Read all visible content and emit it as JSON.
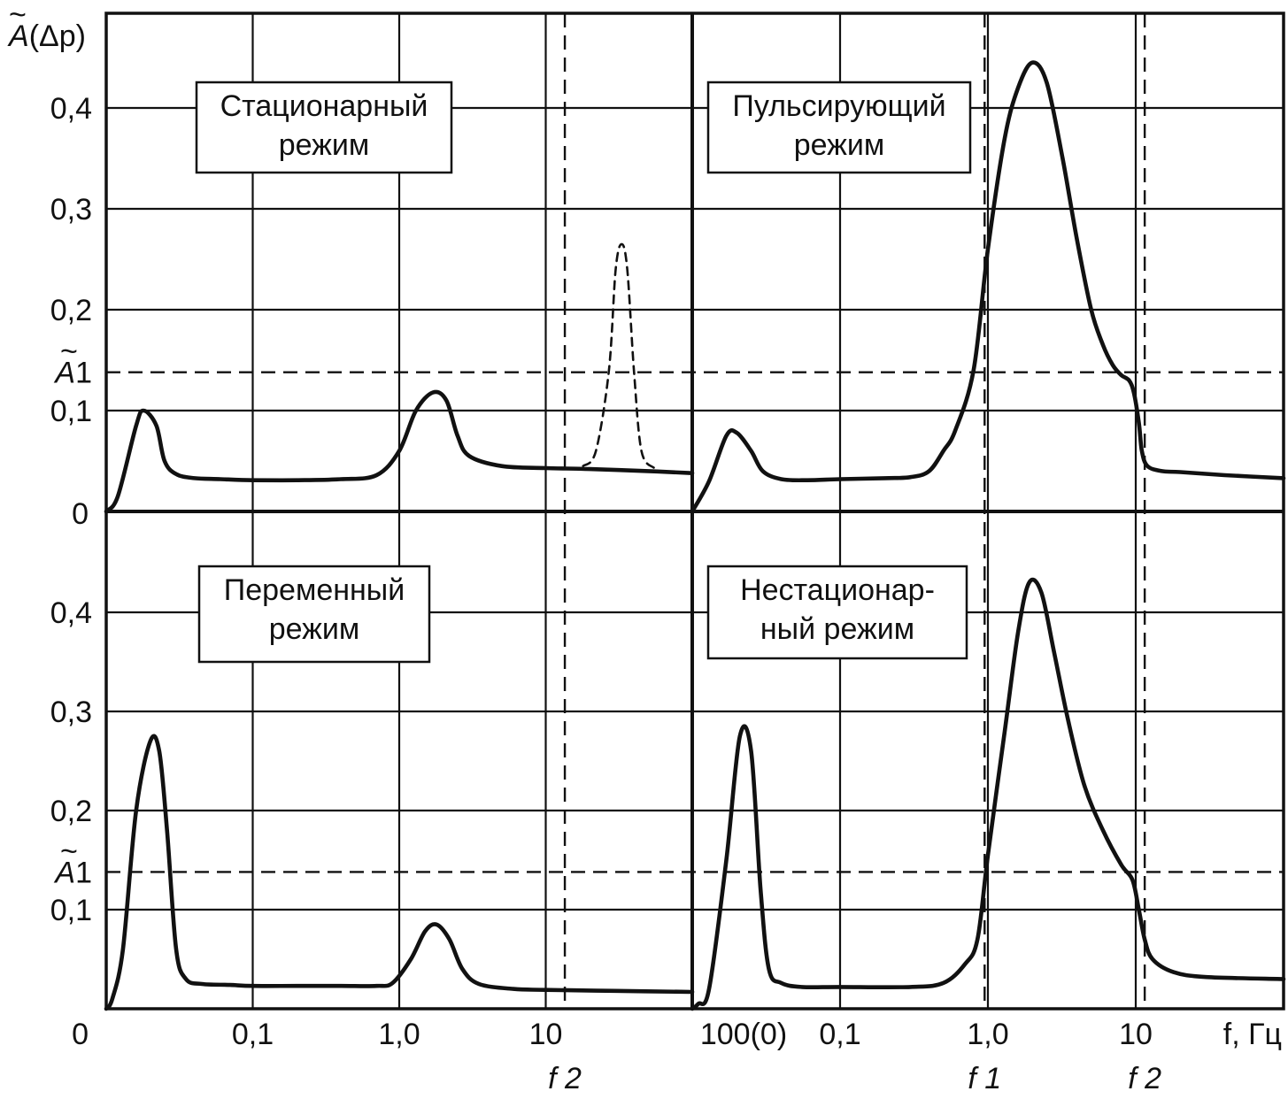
{
  "chart_data": {
    "type": "line",
    "y_axis": {
      "label_symbol": "A",
      "label_rest": "(Δp)",
      "ticks_top": [
        "0,4",
        "0,3",
        "0,2",
        "0,1"
      ],
      "ticks_bottom": [
        "0,4",
        "0,3",
        "0,2",
        "0,1"
      ],
      "zero_label": "0",
      "threshold_label": "A",
      "threshold_suffix": "1",
      "top_ylim": [
        0,
        0.49
      ],
      "bottom_ylim": [
        0,
        0.49
      ]
    },
    "x_axis": {
      "scale": "log",
      "left_ticks": [
        "0,1",
        "1,0",
        "10",
        "100(0)"
      ],
      "right_ticks": [
        "0,1",
        "1,0",
        "10"
      ],
      "unit_label": "f, Гц",
      "left_markers": [
        "f 2"
      ],
      "right_markers": [
        "f 1",
        "f 2"
      ]
    },
    "threshold": {
      "name": "A1",
      "value": 0.138,
      "style": "dashed"
    },
    "panels": [
      {
        "id": "stationary",
        "title_lines": [
          "Стационарный",
          "режим"
        ],
        "row": "top",
        "col": "left",
        "series": [
          {
            "style": "solid",
            "x": [
              0.01,
              0.012,
              0.016,
              0.018,
              0.022,
              0.025,
              0.03,
              0.04,
              0.06,
              0.1,
              0.2,
              0.4,
              0.7,
              1.0,
              1.3,
              1.7,
              2.1,
              2.5,
              3,
              5,
              10,
              20,
              50,
              100
            ],
            "y": [
              0.0,
              0.015,
              0.085,
              0.1,
              0.085,
              0.05,
              0.037,
              0.033,
              0.032,
              0.031,
              0.031,
              0.032,
              0.036,
              0.06,
              0.1,
              0.118,
              0.11,
              0.075,
              0.055,
              0.045,
              0.043,
              0.042,
              0.04,
              0.038
            ]
          },
          {
            "style": "dashed",
            "x": [
              18,
              22,
              27,
              30,
              33,
              36,
              40,
              45,
              55
            ],
            "y": [
              0.045,
              0.06,
              0.14,
              0.24,
              0.265,
              0.24,
              0.14,
              0.06,
              0.043
            ]
          }
        ]
      },
      {
        "id": "pulsating",
        "title_lines": [
          "Пульсирующий",
          "режим"
        ],
        "row": "top",
        "col": "right",
        "series": [
          {
            "style": "solid",
            "x": [
              0.01,
              0.013,
              0.017,
              0.02,
              0.025,
              0.03,
              0.04,
              0.06,
              0.1,
              0.2,
              0.3,
              0.4,
              0.5,
              0.6,
              0.8,
              1.0,
              1.3,
              1.6,
              2.0,
              2.5,
              3.2,
              4,
              5,
              6,
              7,
              8,
              9,
              9.7,
              10.5,
              11,
              12,
              15,
              20,
              40,
              100
            ],
            "y": [
              0.0,
              0.03,
              0.075,
              0.078,
              0.06,
              0.04,
              0.032,
              0.031,
              0.032,
              0.033,
              0.034,
              0.04,
              0.06,
              0.08,
              0.14,
              0.26,
              0.37,
              0.42,
              0.445,
              0.425,
              0.35,
              0.27,
              0.2,
              0.165,
              0.145,
              0.135,
              0.13,
              0.118,
              0.088,
              0.06,
              0.045,
              0.04,
              0.039,
              0.036,
              0.033
            ]
          }
        ]
      },
      {
        "id": "variable",
        "title_lines": [
          "Переменный",
          "режим"
        ],
        "row": "bottom",
        "col": "left",
        "series": [
          {
            "style": "solid",
            "x": [
              0.01,
              0.011,
              0.013,
              0.016,
              0.02,
              0.023,
              0.026,
              0.03,
              0.035,
              0.045,
              0.07,
              0.1,
              0.2,
              0.4,
              0.7,
              0.9,
              1.2,
              1.5,
              1.8,
              2.2,
              2.7,
              3.5,
              6,
              10,
              30,
              100
            ],
            "y": [
              0.0,
              0.01,
              0.06,
              0.2,
              0.27,
              0.26,
              0.18,
              0.06,
              0.03,
              0.025,
              0.024,
              0.023,
              0.023,
              0.023,
              0.023,
              0.026,
              0.05,
              0.078,
              0.085,
              0.07,
              0.04,
              0.025,
              0.02,
              0.019,
              0.018,
              0.017
            ]
          }
        ]
      },
      {
        "id": "nonstationary",
        "title_lines": [
          "Нестационар-",
          "ный режим"
        ],
        "row": "bottom",
        "col": "right",
        "series": [
          {
            "style": "solid",
            "x": [
              0.01,
              0.011,
              0.013,
              0.017,
              0.021,
              0.025,
              0.029,
              0.033,
              0.04,
              0.055,
              0.1,
              0.3,
              0.5,
              0.7,
              0.85,
              1.0,
              1.3,
              1.6,
              1.9,
              2.3,
              2.8,
              3.5,
              4.5,
              6,
              8,
              9.5,
              10.5,
              11.5,
              13,
              18,
              30,
              100
            ],
            "y": [
              0.0,
              0.005,
              0.02,
              0.15,
              0.275,
              0.26,
              0.12,
              0.04,
              0.026,
              0.022,
              0.022,
              0.022,
              0.026,
              0.045,
              0.07,
              0.155,
              0.28,
              0.38,
              0.43,
              0.42,
              0.36,
              0.29,
              0.225,
              0.18,
              0.145,
              0.13,
              0.1,
              0.07,
              0.05,
              0.037,
              0.032,
              0.03
            ]
          }
        ]
      }
    ],
    "vlines": {
      "left": [
        {
          "x": 13.5,
          "style": "dashed",
          "label": "f 2"
        }
      ],
      "right": [
        {
          "x": 0.95,
          "style": "dashed",
          "label": "f 1"
        },
        {
          "x": 11.5,
          "style": "dashed",
          "label": "f 2"
        }
      ]
    }
  }
}
